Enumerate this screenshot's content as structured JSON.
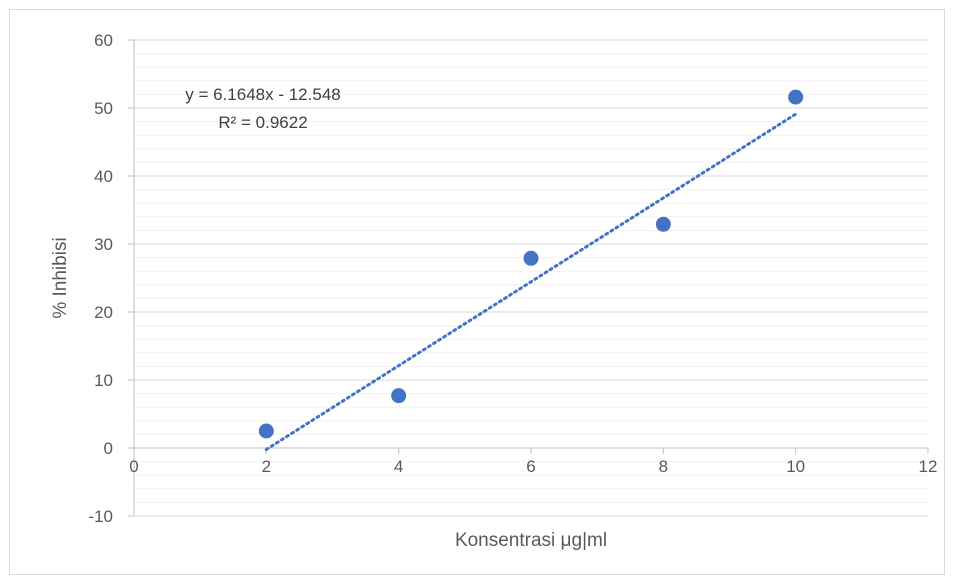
{
  "chart_data": {
    "type": "scatter",
    "title": "",
    "xlabel": "Konsentrasi μg|ml",
    "ylabel": "% Inhibisi",
    "xlim": [
      0,
      12
    ],
    "ylim": [
      -10,
      60
    ],
    "x_major_step": 2,
    "y_major_step": 10,
    "y_minor_step": 2,
    "grid": true,
    "legend": "none",
    "x_ticks": [
      "0",
      "2",
      "4",
      "6",
      "8",
      "10",
      "12"
    ],
    "y_ticks": [
      "60",
      "50",
      "40",
      "30",
      "20",
      "10",
      "0",
      "-10"
    ],
    "series": [
      {
        "x": [
          2,
          4,
          6,
          8,
          10
        ],
        "y": [
          2.5,
          7.7,
          27.9,
          32.9,
          51.6
        ]
      }
    ],
    "trendline": {
      "type": "linear",
      "slope": 6.1648,
      "intercept": -12.548,
      "x_range": [
        2,
        10
      ],
      "equation": "y = 6.1648x - 12.548",
      "r_squared": "R² = 0.9622"
    },
    "colors": {
      "marker": "#4472c4",
      "trendline": "#4472c4",
      "major_grid": "#d9d9d9",
      "minor_grid": "#f2f2f2",
      "axis": "#bfbfbf",
      "text": "#595959"
    }
  }
}
